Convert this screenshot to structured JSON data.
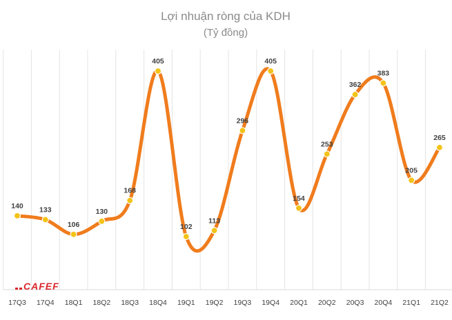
{
  "chart_data": {
    "type": "line",
    "title": "Lợi nhuận ròng của KDH",
    "subtitle": "(Tỷ đồng)",
    "categories": [
      "17Q3",
      "17Q4",
      "18Q1",
      "18Q2",
      "18Q3",
      "18Q4",
      "19Q1",
      "19Q2",
      "19Q3",
      "19Q4",
      "20Q1",
      "20Q2",
      "20Q3",
      "20Q4",
      "21Q1",
      "21Q2"
    ],
    "series": [
      {
        "values": [
          140,
          133,
          106,
          130,
          168,
          405,
          102,
          113,
          296,
          405,
          154,
          253,
          362,
          383,
          205,
          265
        ]
      }
    ],
    "data_labels": [
      "140",
      "133",
      "106",
      "130",
      "168",
      "405",
      "102",
      "113",
      "296",
      "405",
      "154",
      "253",
      "362",
      "383",
      "205",
      "265"
    ],
    "smooth": true,
    "grid": "vertical",
    "legend": "none"
  },
  "colors": {
    "line": "#f07c1d",
    "marker": "#f3c319",
    "grid": "#e4e4e4",
    "logo": "#d9262c"
  },
  "logo": {
    "text": "CAFEF"
  }
}
